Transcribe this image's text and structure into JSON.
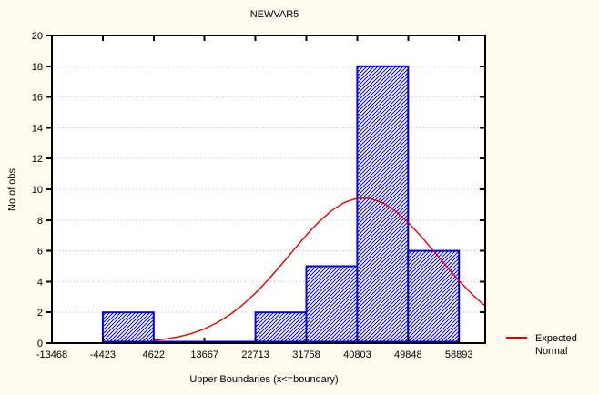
{
  "chart_data": {
    "type": "histogram",
    "title": "NEWVAR5",
    "xlabel": "Upper Boundaries (x<=boundary)",
    "ylabel": "No of obs",
    "xlim": [
      -13468,
      63550
    ],
    "ylim": [
      0,
      20
    ],
    "x_ticks": [
      -13468,
      -4423,
      4622,
      13667,
      22713,
      31758,
      40803,
      49848,
      58893
    ],
    "y_ticks": [
      0,
      2,
      4,
      6,
      8,
      10,
      12,
      14,
      16,
      18,
      20
    ],
    "grid": "horizontal-dotted",
    "bin_width": 9045,
    "bins": [
      {
        "from": -4423,
        "to": 4622,
        "count": 2
      },
      {
        "from": 4622,
        "to": 13667,
        "count": 0
      },
      {
        "from": 13667,
        "to": 22713,
        "count": 0
      },
      {
        "from": 22713,
        "to": 31758,
        "count": 2
      },
      {
        "from": 31758,
        "to": 40803,
        "count": 5
      },
      {
        "from": 40803,
        "to": 49848,
        "count": 18
      },
      {
        "from": 49848,
        "to": 58893,
        "count": 6
      }
    ],
    "normal_curve": {
      "name": "Expected Normal",
      "points": [
        [
          4622,
          0.17
        ],
        [
          6883,
          0.27
        ],
        [
          9145,
          0.42
        ],
        [
          11406,
          0.63
        ],
        [
          13667,
          0.93
        ],
        [
          15929,
          1.33
        ],
        [
          18190,
          1.85
        ],
        [
          20452,
          2.49
        ],
        [
          22713,
          3.25
        ],
        [
          24974,
          4.12
        ],
        [
          27235,
          5.06
        ],
        [
          29497,
          6.05
        ],
        [
          31758,
          7.02
        ],
        [
          34019,
          7.9
        ],
        [
          36280,
          8.63
        ],
        [
          38542,
          9.15
        ],
        [
          40803,
          9.42
        ],
        [
          43064,
          9.41
        ],
        [
          45325,
          9.13
        ],
        [
          47587,
          8.59
        ],
        [
          49848,
          7.85
        ],
        [
          52109,
          6.96
        ],
        [
          54370,
          6.0
        ],
        [
          56632,
          5.01
        ],
        [
          58893,
          4.06
        ],
        [
          61154,
          3.2
        ],
        [
          63415,
          2.45
        ]
      ]
    },
    "legend": {
      "position": "right-bottom",
      "lines": [
        "Expected",
        "Normal"
      ]
    }
  },
  "colors": {
    "background": "#fffaee",
    "plot_background": "#ffffff",
    "bar_border": "#0000dd",
    "bar_hatch": "#0000dd",
    "bar_fill": "#ffffff",
    "baseline": "#0000dd",
    "curve": "#e00000",
    "grid": "#bbbbbb",
    "axis": "#000000",
    "text": "#000000"
  }
}
